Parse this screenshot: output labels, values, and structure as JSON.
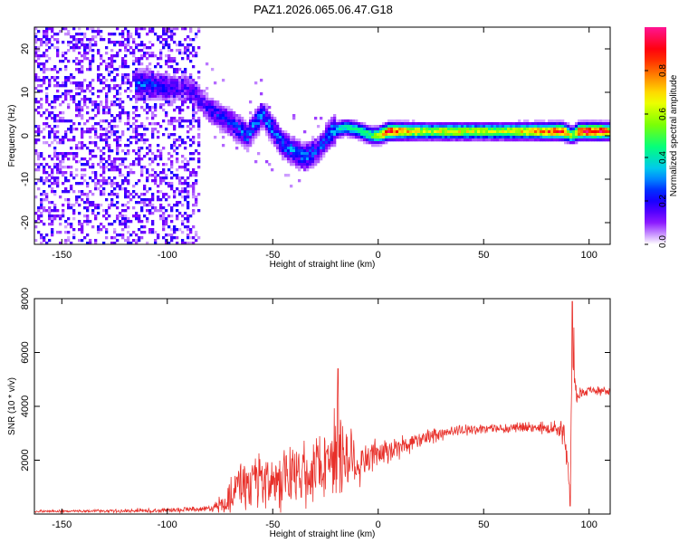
{
  "title": "PAZ1.2026.065.06.47.G18",
  "chart_data": [
    {
      "type": "heatmap",
      "name": "spectrogram",
      "xlabel": "Height of straight line (km)",
      "ylabel": "Frequency (Hz)",
      "xlim": [
        -163,
        110
      ],
      "ylim": [
        -25,
        25
      ],
      "xticks": [
        -150,
        -100,
        -50,
        0,
        50,
        100
      ],
      "yticks": [
        -20,
        -10,
        0,
        10,
        20
      ],
      "colorbar": {
        "label": "Normalized spectral amplitude",
        "range": [
          0,
          1
        ],
        "ticks": [
          "0.0",
          "0.2",
          "0.4",
          "0.6",
          "0.8"
        ],
        "colors": [
          "#ffffff",
          "#7f00ff",
          "#0000ff",
          "#00bfff",
          "#00ff80",
          "#80ff00",
          "#ffff00",
          "#ff8000",
          "#ff0000",
          "#ff1493"
        ]
      },
      "ridge": [
        {
          "x": -110,
          "y": 12,
          "v": 0.3
        },
        {
          "x": -100,
          "y": 11,
          "v": 0.2
        },
        {
          "x": -90,
          "y": 11,
          "v": 0.15
        },
        {
          "x": -80,
          "y": 6,
          "v": 0.2
        },
        {
          "x": -70,
          "y": 3,
          "v": 0.25
        },
        {
          "x": -62,
          "y": 0,
          "v": 0.3
        },
        {
          "x": -55,
          "y": 5,
          "v": 0.3
        },
        {
          "x": -45,
          "y": -2,
          "v": 0.3
        },
        {
          "x": -35,
          "y": -5,
          "v": 0.3
        },
        {
          "x": -28,
          "y": -3,
          "v": 0.25
        },
        {
          "x": -22,
          "y": 1,
          "v": 0.35
        },
        {
          "x": -15,
          "y": 2,
          "v": 0.4
        },
        {
          "x": -8,
          "y": 1,
          "v": 0.45
        },
        {
          "x": -3,
          "y": 0,
          "v": 0.5
        },
        {
          "x": 0,
          "y": 0,
          "v": 0.6
        },
        {
          "x": 5,
          "y": 1,
          "v": 0.9
        },
        {
          "x": 15,
          "y": 1,
          "v": 0.7
        },
        {
          "x": 25,
          "y": 1,
          "v": 0.6
        },
        {
          "x": 35,
          "y": 1,
          "v": 0.65
        },
        {
          "x": 50,
          "y": 1,
          "v": 0.6
        },
        {
          "x": 65,
          "y": 1,
          "v": 0.65
        },
        {
          "x": 80,
          "y": 1,
          "v": 0.8
        },
        {
          "x": 88,
          "y": 1,
          "v": 0.9
        },
        {
          "x": 92,
          "y": 0,
          "v": 0.5
        },
        {
          "x": 95,
          "y": 1,
          "v": 0.9
        },
        {
          "x": 105,
          "y": 1,
          "v": 0.95
        },
        {
          "x": 110,
          "y": 1,
          "v": 0.7
        }
      ]
    },
    {
      "type": "line",
      "name": "snr",
      "xlabel": "Height of straight line (km)",
      "ylabel": "SNR (10 * v/v)",
      "xlim": [
        -163,
        110
      ],
      "ylim": [
        0,
        8000
      ],
      "xticks": [
        -150,
        -100,
        -50,
        0,
        50,
        100
      ],
      "yticks": [
        2000,
        4000,
        6000,
        8000
      ],
      "color": "#e8302a",
      "envelope": [
        {
          "x": -163,
          "mean": 100,
          "amp": 40
        },
        {
          "x": -110,
          "mean": 120,
          "amp": 60
        },
        {
          "x": -100,
          "mean": 150,
          "amp": 90
        },
        {
          "x": -80,
          "mean": 200,
          "amp": 110
        },
        {
          "x": -72,
          "mean": 450,
          "amp": 350
        },
        {
          "x": -65,
          "mean": 1200,
          "amp": 900
        },
        {
          "x": -55,
          "mean": 1000,
          "amp": 900
        },
        {
          "x": -45,
          "mean": 1300,
          "amp": 1000
        },
        {
          "x": -35,
          "mean": 1500,
          "amp": 1100
        },
        {
          "x": -25,
          "mean": 2000,
          "amp": 1300
        },
        {
          "x": -19,
          "mean": 2400,
          "amp": 2000
        },
        {
          "x": -12,
          "mean": 1900,
          "amp": 1100
        },
        {
          "x": -5,
          "mean": 2000,
          "amp": 700
        },
        {
          "x": 5,
          "mean": 2300,
          "amp": 400
        },
        {
          "x": 20,
          "mean": 2800,
          "amp": 300
        },
        {
          "x": 35,
          "mean": 3100,
          "amp": 200
        },
        {
          "x": 60,
          "mean": 3200,
          "amp": 160
        },
        {
          "x": 85,
          "mean": 3200,
          "amp": 200
        },
        {
          "x": 89,
          "mean": 2800,
          "amp": 700
        },
        {
          "x": 91,
          "mean": 1000,
          "amp": 700
        },
        {
          "x": 92,
          "mean": 6500,
          "amp": 1500
        },
        {
          "x": 94,
          "mean": 4400,
          "amp": 300
        },
        {
          "x": 100,
          "mean": 4600,
          "amp": 150
        },
        {
          "x": 110,
          "mean": 4550,
          "amp": 150
        }
      ],
      "peaks": [
        {
          "x": -19,
          "y": 5400
        },
        {
          "x": 92,
          "y": 7900
        },
        {
          "x": 91,
          "y": 300
        }
      ]
    }
  ]
}
